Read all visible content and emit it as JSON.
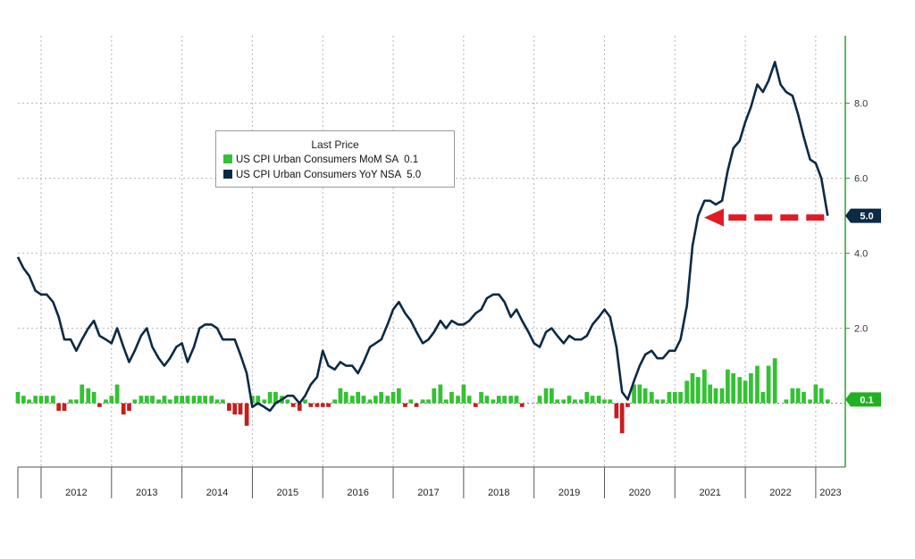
{
  "colors": {
    "yoy_line": "#0b2a45",
    "mom_pos": "#33c233",
    "mom_neg": "#c41e1e",
    "axis_green": "#2ea02e",
    "grid": "#b5b5b5",
    "arrow": "#e01b24",
    "yoy_badge": "#0b2a45",
    "mom_badge": "#22b022"
  },
  "legend": {
    "title": "Last Price",
    "items": [
      {
        "label": "US CPI Urban Consumers MoM SA",
        "value": "0.1"
      },
      {
        "label": "US CPI Urban Consumers YoY NSA",
        "value": "5.0"
      }
    ]
  },
  "chart_data": {
    "type": "line",
    "x_range": [
      2011.67,
      2023.42
    ],
    "ylim": [
      -1.7,
      9.8
    ],
    "y_ticks": [
      "2.0",
      "4.0",
      "6.0",
      "8.0"
    ],
    "x_ticks": [
      "2012",
      "2013",
      "2014",
      "2015",
      "2016",
      "2017",
      "2018",
      "2019",
      "2020",
      "2021",
      "2022",
      "2023"
    ],
    "grid": "dotted",
    "legend_position": "top-center",
    "annotations": [
      "red dashed arrow pointing to latest YoY value"
    ],
    "last_values": {
      "yoy": "5.0",
      "mom": "0.1"
    },
    "series": [
      {
        "name": "US CPI Urban Consumers YoY NSA",
        "kind": "line",
        "points": [
          [
            2011.67,
            3.9
          ],
          [
            2011.75,
            3.6
          ],
          [
            2011.83,
            3.4
          ],
          [
            2011.92,
            3.0
          ],
          [
            2012.0,
            2.9
          ],
          [
            2012.08,
            2.9
          ],
          [
            2012.17,
            2.7
          ],
          [
            2012.25,
            2.3
          ],
          [
            2012.33,
            1.7
          ],
          [
            2012.42,
            1.7
          ],
          [
            2012.5,
            1.4
          ],
          [
            2012.58,
            1.7
          ],
          [
            2012.67,
            2.0
          ],
          [
            2012.75,
            2.2
          ],
          [
            2012.83,
            1.8
          ],
          [
            2012.92,
            1.7
          ],
          [
            2013.0,
            1.6
          ],
          [
            2013.08,
            2.0
          ],
          [
            2013.17,
            1.5
          ],
          [
            2013.25,
            1.1
          ],
          [
            2013.33,
            1.4
          ],
          [
            2013.42,
            1.8
          ],
          [
            2013.5,
            2.0
          ],
          [
            2013.58,
            1.5
          ],
          [
            2013.67,
            1.2
          ],
          [
            2013.75,
            1.0
          ],
          [
            2013.83,
            1.2
          ],
          [
            2013.92,
            1.5
          ],
          [
            2014.0,
            1.6
          ],
          [
            2014.08,
            1.1
          ],
          [
            2014.17,
            1.5
          ],
          [
            2014.25,
            2.0
          ],
          [
            2014.33,
            2.1
          ],
          [
            2014.42,
            2.1
          ],
          [
            2014.5,
            2.0
          ],
          [
            2014.58,
            1.7
          ],
          [
            2014.67,
            1.7
          ],
          [
            2014.75,
            1.7
          ],
          [
            2014.83,
            1.3
          ],
          [
            2014.92,
            0.8
          ],
          [
            2015.0,
            -0.1
          ],
          [
            2015.08,
            0.0
          ],
          [
            2015.17,
            -0.1
          ],
          [
            2015.25,
            -0.2
          ],
          [
            2015.33,
            0.0
          ],
          [
            2015.42,
            0.1
          ],
          [
            2015.5,
            0.2
          ],
          [
            2015.58,
            0.2
          ],
          [
            2015.67,
            0.0
          ],
          [
            2015.75,
            0.2
          ],
          [
            2015.83,
            0.5
          ],
          [
            2015.92,
            0.7
          ],
          [
            2016.0,
            1.4
          ],
          [
            2016.08,
            1.0
          ],
          [
            2016.17,
            0.9
          ],
          [
            2016.25,
            1.1
          ],
          [
            2016.33,
            1.0
          ],
          [
            2016.42,
            1.0
          ],
          [
            2016.5,
            0.8
          ],
          [
            2016.58,
            1.1
          ],
          [
            2016.67,
            1.5
          ],
          [
            2016.75,
            1.6
          ],
          [
            2016.83,
            1.7
          ],
          [
            2016.92,
            2.1
          ],
          [
            2017.0,
            2.5
          ],
          [
            2017.08,
            2.7
          ],
          [
            2017.17,
            2.4
          ],
          [
            2017.25,
            2.2
          ],
          [
            2017.33,
            1.9
          ],
          [
            2017.42,
            1.6
          ],
          [
            2017.5,
            1.7
          ],
          [
            2017.58,
            1.9
          ],
          [
            2017.67,
            2.2
          ],
          [
            2017.75,
            2.0
          ],
          [
            2017.83,
            2.2
          ],
          [
            2017.92,
            2.1
          ],
          [
            2018.0,
            2.1
          ],
          [
            2018.08,
            2.2
          ],
          [
            2018.17,
            2.4
          ],
          [
            2018.25,
            2.5
          ],
          [
            2018.33,
            2.8
          ],
          [
            2018.42,
            2.9
          ],
          [
            2018.5,
            2.9
          ],
          [
            2018.58,
            2.7
          ],
          [
            2018.67,
            2.3
          ],
          [
            2018.75,
            2.5
          ],
          [
            2018.83,
            2.2
          ],
          [
            2018.92,
            1.9
          ],
          [
            2019.0,
            1.6
          ],
          [
            2019.08,
            1.5
          ],
          [
            2019.17,
            1.9
          ],
          [
            2019.25,
            2.0
          ],
          [
            2019.33,
            1.8
          ],
          [
            2019.42,
            1.6
          ],
          [
            2019.5,
            1.8
          ],
          [
            2019.58,
            1.7
          ],
          [
            2019.67,
            1.7
          ],
          [
            2019.75,
            1.8
          ],
          [
            2019.83,
            2.1
          ],
          [
            2019.92,
            2.3
          ],
          [
            2020.0,
            2.5
          ],
          [
            2020.08,
            2.3
          ],
          [
            2020.17,
            1.5
          ],
          [
            2020.25,
            0.3
          ],
          [
            2020.33,
            0.1
          ],
          [
            2020.42,
            0.6
          ],
          [
            2020.5,
            1.0
          ],
          [
            2020.58,
            1.3
          ],
          [
            2020.67,
            1.4
          ],
          [
            2020.75,
            1.2
          ],
          [
            2020.83,
            1.2
          ],
          [
            2020.92,
            1.4
          ],
          [
            2021.0,
            1.4
          ],
          [
            2021.08,
            1.7
          ],
          [
            2021.17,
            2.6
          ],
          [
            2021.25,
            4.2
          ],
          [
            2021.33,
            5.0
          ],
          [
            2021.42,
            5.4
          ],
          [
            2021.5,
            5.4
          ],
          [
            2021.58,
            5.3
          ],
          [
            2021.67,
            5.4
          ],
          [
            2021.75,
            6.2
          ],
          [
            2021.83,
            6.8
          ],
          [
            2021.92,
            7.0
          ],
          [
            2022.0,
            7.5
          ],
          [
            2022.08,
            7.9
          ],
          [
            2022.17,
            8.5
          ],
          [
            2022.25,
            8.3
          ],
          [
            2022.33,
            8.6
          ],
          [
            2022.42,
            9.1
          ],
          [
            2022.5,
            8.5
          ],
          [
            2022.58,
            8.3
          ],
          [
            2022.67,
            8.2
          ],
          [
            2022.75,
            7.7
          ],
          [
            2022.83,
            7.1
          ],
          [
            2022.92,
            6.5
          ],
          [
            2023.0,
            6.4
          ],
          [
            2023.08,
            6.0
          ],
          [
            2023.17,
            5.0
          ]
        ]
      },
      {
        "name": "US CPI Urban Consumers MoM SA",
        "kind": "bar",
        "points": [
          [
            2011.67,
            0.3
          ],
          [
            2011.75,
            0.2
          ],
          [
            2011.83,
            0.1
          ],
          [
            2011.92,
            0.2
          ],
          [
            2012.0,
            0.2
          ],
          [
            2012.08,
            0.2
          ],
          [
            2012.17,
            0.2
          ],
          [
            2012.25,
            -0.2
          ],
          [
            2012.33,
            -0.2
          ],
          [
            2012.42,
            0.1
          ],
          [
            2012.5,
            0.1
          ],
          [
            2012.58,
            0.5
          ],
          [
            2012.67,
            0.4
          ],
          [
            2012.75,
            0.3
          ],
          [
            2012.83,
            -0.1
          ],
          [
            2012.92,
            0.1
          ],
          [
            2013.0,
            0.2
          ],
          [
            2013.08,
            0.5
          ],
          [
            2013.17,
            -0.3
          ],
          [
            2013.25,
            -0.2
          ],
          [
            2013.33,
            0.1
          ],
          [
            2013.42,
            0.2
          ],
          [
            2013.5,
            0.2
          ],
          [
            2013.58,
            0.2
          ],
          [
            2013.67,
            0.1
          ],
          [
            2013.75,
            0.2
          ],
          [
            2013.83,
            0.1
          ],
          [
            2013.92,
            0.2
          ],
          [
            2014.0,
            0.2
          ],
          [
            2014.08,
            0.2
          ],
          [
            2014.17,
            0.2
          ],
          [
            2014.25,
            0.2
          ],
          [
            2014.33,
            0.2
          ],
          [
            2014.42,
            0.2
          ],
          [
            2014.5,
            0.1
          ],
          [
            2014.58,
            0.1
          ],
          [
            2014.67,
            -0.2
          ],
          [
            2014.75,
            -0.3
          ],
          [
            2014.83,
            -0.3
          ],
          [
            2014.92,
            -0.6
          ],
          [
            2015.0,
            0.2
          ],
          [
            2015.08,
            0.2
          ],
          [
            2015.17,
            0.1
          ],
          [
            2015.25,
            0.3
          ],
          [
            2015.33,
            0.3
          ],
          [
            2015.42,
            0.2
          ],
          [
            2015.5,
            0.1
          ],
          [
            2015.58,
            -0.1
          ],
          [
            2015.67,
            -0.2
          ],
          [
            2015.75,
            0.1
          ],
          [
            2015.83,
            -0.1
          ],
          [
            2015.92,
            -0.1
          ],
          [
            2016.0,
            -0.1
          ],
          [
            2016.08,
            -0.1
          ],
          [
            2016.17,
            0.1
          ],
          [
            2016.25,
            0.4
          ],
          [
            2016.33,
            0.3
          ],
          [
            2016.42,
            0.2
          ],
          [
            2016.5,
            0.3
          ],
          [
            2016.58,
            0.2
          ],
          [
            2016.67,
            0.1
          ],
          [
            2016.75,
            0.2
          ],
          [
            2016.83,
            0.3
          ],
          [
            2016.92,
            0.2
          ],
          [
            2017.0,
            0.3
          ],
          [
            2017.08,
            0.4
          ],
          [
            2017.17,
            -0.1
          ],
          [
            2017.25,
            0.1
          ],
          [
            2017.33,
            -0.1
          ],
          [
            2017.42,
            0.1
          ],
          [
            2017.5,
            0.1
          ],
          [
            2017.58,
            0.4
          ],
          [
            2017.67,
            0.5
          ],
          [
            2017.75,
            0.1
          ],
          [
            2017.83,
            0.3
          ],
          [
            2017.92,
            0.2
          ],
          [
            2018.0,
            0.5
          ],
          [
            2018.08,
            0.2
          ],
          [
            2018.17,
            -0.1
          ],
          [
            2018.25,
            0.3
          ],
          [
            2018.33,
            0.2
          ],
          [
            2018.42,
            0.1
          ],
          [
            2018.5,
            0.2
          ],
          [
            2018.58,
            0.2
          ],
          [
            2018.67,
            0.2
          ],
          [
            2018.75,
            0.2
          ],
          [
            2018.83,
            -0.1
          ],
          [
            2018.92,
            0.0
          ],
          [
            2019.0,
            0.0
          ],
          [
            2019.08,
            0.2
          ],
          [
            2019.17,
            0.4
          ],
          [
            2019.25,
            0.4
          ],
          [
            2019.33,
            0.1
          ],
          [
            2019.42,
            0.1
          ],
          [
            2019.5,
            0.2
          ],
          [
            2019.58,
            0.1
          ],
          [
            2019.67,
            0.1
          ],
          [
            2019.75,
            0.3
          ],
          [
            2019.83,
            0.2
          ],
          [
            2019.92,
            0.2
          ],
          [
            2020.0,
            0.1
          ],
          [
            2020.08,
            0.1
          ],
          [
            2020.17,
            -0.4
          ],
          [
            2020.25,
            -0.8
          ],
          [
            2020.33,
            -0.1
          ],
          [
            2020.42,
            0.5
          ],
          [
            2020.5,
            0.5
          ],
          [
            2020.58,
            0.4
          ],
          [
            2020.67,
            0.3
          ],
          [
            2020.75,
            0.1
          ],
          [
            2020.83,
            0.1
          ],
          [
            2020.92,
            0.3
          ],
          [
            2021.0,
            0.3
          ],
          [
            2021.08,
            0.3
          ],
          [
            2021.17,
            0.6
          ],
          [
            2021.25,
            0.8
          ],
          [
            2021.33,
            0.7
          ],
          [
            2021.42,
            0.9
          ],
          [
            2021.5,
            0.5
          ],
          [
            2021.58,
            0.4
          ],
          [
            2021.67,
            0.4
          ],
          [
            2021.75,
            0.9
          ],
          [
            2021.83,
            0.8
          ],
          [
            2021.92,
            0.7
          ],
          [
            2022.0,
            0.6
          ],
          [
            2022.08,
            0.8
          ],
          [
            2022.17,
            1.0
          ],
          [
            2022.25,
            0.3
          ],
          [
            2022.33,
            1.0
          ],
          [
            2022.42,
            1.2
          ],
          [
            2022.5,
            0.0
          ],
          [
            2022.58,
            0.1
          ],
          [
            2022.67,
            0.4
          ],
          [
            2022.75,
            0.4
          ],
          [
            2022.83,
            0.3
          ],
          [
            2022.92,
            0.1
          ],
          [
            2023.0,
            0.5
          ],
          [
            2023.08,
            0.4
          ],
          [
            2023.17,
            0.1
          ]
        ]
      }
    ]
  }
}
